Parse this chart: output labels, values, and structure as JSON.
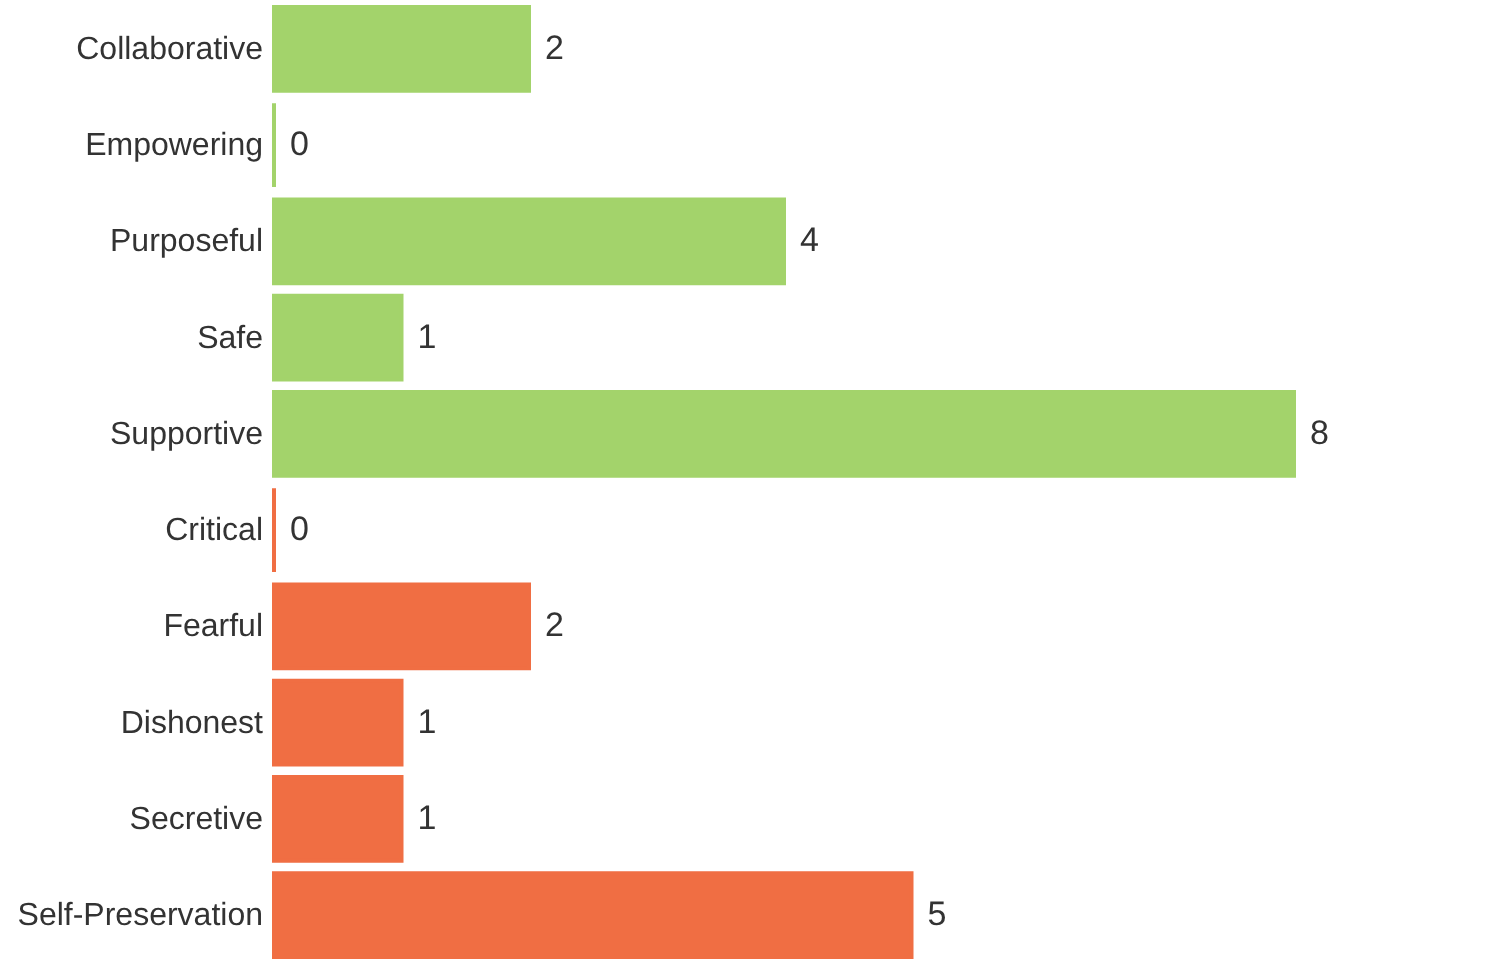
{
  "chart_data": {
    "type": "bar",
    "orientation": "horizontal",
    "data_labels": true,
    "categories": [
      "Collaborative",
      "Empowering",
      "Purposeful",
      "Safe",
      "Supportive",
      "Critical",
      "Fearful",
      "Dishonest",
      "Secretive",
      "Self-Preservation"
    ],
    "values": [
      2,
      0,
      4,
      1,
      8,
      0,
      2,
      1,
      1,
      5
    ],
    "colors": [
      "#a3d36b",
      "#a3d36b",
      "#a3d36b",
      "#a3d36b",
      "#a3d36b",
      "#f06e43",
      "#f06e43",
      "#f06e43",
      "#f06e43",
      "#f06e43"
    ]
  }
}
